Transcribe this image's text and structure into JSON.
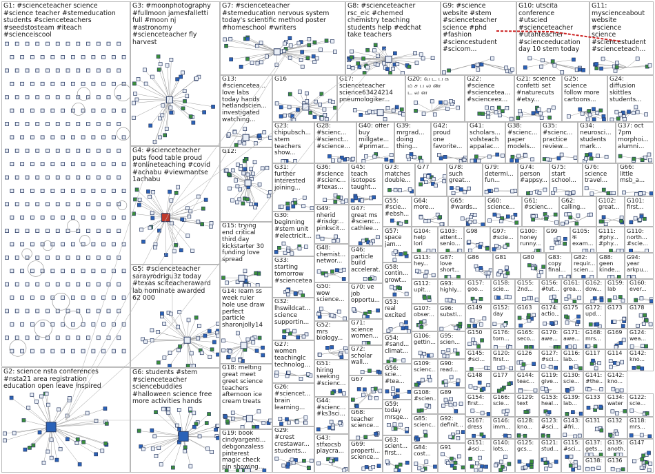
{
  "groups": [
    {
      "id": "G1",
      "text": "G1: #scienceteacher science\n#science teacher #stemeducation\nstudents #scienceteachers\n#seedstosteam #iteach\n#scienceiscool"
    },
    {
      "id": "G2",
      "text": "G2: science nsta conferences\n#nsta21 area registration\neducation open leave inspired"
    },
    {
      "id": "G3",
      "text": "G3: #moonphotography\n#fullmoon jamesfalletti\nfull #moon nj\n#astronomy\n#scienceteacher fly\nharvest"
    },
    {
      "id": "G4",
      "text": "G4: #scienceteacher\nputs food table proud\n#onlineteaching #covid\n#achabu #viewmantse\n1achabu"
    },
    {
      "id": "G5",
      "text": "G5: #scienceteacher\nsarayrodrigu3z today\n#texas sciteacheraward\nlab nominate awarded\n62 000"
    },
    {
      "id": "G6",
      "text": "G6: students #stem\n#scienceteacher\nsciencebuddies\n#halloween science free\nmore activities hands"
    },
    {
      "id": "G7",
      "text": "G7: #scienceteacher\n#stemeducation nervous system\ntoday's scientific method poster\n#homeschool #writers"
    },
    {
      "id": "G8",
      "text": "G8: #scienceteacher\nrsc_eic #chemed\nchemistry teaching\nstudents help #edchat\ntake teachers"
    },
    {
      "id": "G9",
      "text": "G9: #science\nwebsite #stem\n#scienceteacher\nscience #phd\n#fashion\n#sciencestudent\n#scicom..."
    },
    {
      "id": "G10",
      "text": "G10: utscita\nconference\n#utscied\n#scienceteacher\n#utahteacher\n#scienceeducation\nday 10 stem today"
    },
    {
      "id": "G11",
      "text": "G11:\nmyscienceabout\nwebsite\n#science\nscience\n#sciencestudent\n#scienceteach..."
    },
    {
      "id": "G12",
      "text": "G12:"
    },
    {
      "id": "G13",
      "text": "G13:\n#scienceteа...\nlove labs\ntoday hands\nhetlandscien...\ninvestigated\nwatching..."
    },
    {
      "id": "G14",
      "text": "G14: learn ss\nweek ruler\nhole use draw\nperfect\nparticle\nsharonjolly14"
    },
    {
      "id": "G15",
      "text": "G15: trying\nend critical\nthird day\nkickstarter 30\nfunding love\nspread"
    },
    {
      "id": "G16",
      "text": "G16"
    },
    {
      "id": "G17",
      "text": "G17:\nscienceteacher\nscience63424214\npneumologiker..."
    },
    {
      "id": "G18",
      "text": "G18: melting\ngreat meet\ngreet science\nteachers\nafternoon ice\ncream treats"
    },
    {
      "id": "G19",
      "text": "G19: book\ncindyargenti...\ndebgonzaless\npinterest\nmagic check\npin showing..."
    },
    {
      "id": "G20",
      "text": "G20: வ ட ப க\nம ச ப ல ண\nட ல ன"
    },
    {
      "id": "G21",
      "text": "G21: science\nconfetti set\n#naturecuts\n#etsy..."
    },
    {
      "id": "G22",
      "text": "G22:\n#science\n#scienceteа...\n#scienceex..."
    },
    {
      "id": "G23",
      "text": "G23:\nchipubsch...\nstem\nteachers\nshow..."
    },
    {
      "id": "G24",
      "text": "G24:\ndiffusion\nskittles\nstudents..."
    },
    {
      "id": "G25",
      "text": "G25:\nscience\nfollow more\ncartoons..."
    },
    {
      "id": "G26",
      "text": "G26:\n#sciencet...\nbrain\nlearning..."
    },
    {
      "id": "G27",
      "text": "G27:\nwomen\nteachinglc\ntechnolog..."
    },
    {
      "id": "G28",
      "text": "G28:\n#scienc...\n#scienct...\n#science..."
    },
    {
      "id": "G29",
      "text": "G29:\n#crest\ncrestawar...\nstudents..."
    },
    {
      "id": "G30",
      "text": "G30:\nbeginning\n#stem unit\n#electricit..."
    },
    {
      "id": "G31",
      "text": "G31:\nfurther\ninterested\njoining..."
    },
    {
      "id": "G32",
      "text": "G32:\nlhswildcat...\nscience\nsupportin..."
    },
    {
      "id": "G33",
      "text": "G33:\nstarting\ntomorrow\n#scienceteа..."
    },
    {
      "id": "G34",
      "text": "G34:\nneurosci...\nstudents\nmark..."
    },
    {
      "id": "G35",
      "text": "G35:\n#scienc...\npractice\nreview..."
    },
    {
      "id": "G36",
      "text": "G36:\n#science\n#scienc...\n#texas..."
    },
    {
      "id": "G37",
      "text": "G37: oct\n7pm\nmorphoi...\nalumni..."
    },
    {
      "id": "G38",
      "text": "G38:\n#scienc...\npaper\nmodels..."
    },
    {
      "id": "G39",
      "text": "G39:\nmrgrad...\ndoing\nthing..."
    },
    {
      "id": "G40",
      "text": "G40: offer\nbuy\nmillgate...\n#primar..."
    },
    {
      "id": "G41",
      "text": "G41:\nscholars...\nvolsteach\nappalac..."
    },
    {
      "id": "G42",
      "text": "G42:\nproud\none\nfavorite..."
    },
    {
      "id": "G43",
      "text": "G43:\nstfxocsb\nplaycra..."
    },
    {
      "id": "G44",
      "text": "G44:\n#scienc...\n#ks3sci..."
    },
    {
      "id": "G45",
      "text": "G45:\nteach\nisotopes\ntaught..."
    },
    {
      "id": "G46",
      "text": "G46:\nparticle\nbuild\naccelerat..."
    },
    {
      "id": "G47",
      "text": "G47:\ngreat ms\n#scienc...\ncathlee..."
    },
    {
      "id": "G48",
      "text": "G48:\nchemist...\nnetwor..."
    },
    {
      "id": "G49",
      "text": "G49:\nnherid\n#risdgr...\npinkscit..."
    },
    {
      "id": "G50",
      "text": "G50:\nwow\nscience..."
    },
    {
      "id": "G51",
      "text": "G51:\nhiring\nseeking\n#scienc..."
    },
    {
      "id": "G52",
      "text": "G52:\nmrs\nbiology..."
    },
    {
      "id": "G53",
      "text": "G53:\nreal\nexcited"
    },
    {
      "id": "G54",
      "text": "G54:\n#sand...\nclimat..."
    },
    {
      "id": "G55",
      "text": "G55:\n#scie...\n#ebsh..."
    },
    {
      "id": "G56",
      "text": "G56:\nscie...\n#tea..."
    },
    {
      "id": "G57",
      "text": "G57:\nspace\njam..."
    },
    {
      "id": "G58",
      "text": "G58:\ncontin...\ngrowt..."
    },
    {
      "id": "G59",
      "text": "G59:\ntoday\nmrsge..."
    },
    {
      "id": "G60",
      "text": "G60:\nscience..."
    },
    {
      "id": "G61",
      "text": "G61:\n#scienc..."
    },
    {
      "id": "G62",
      "text": "G62:\ncalling..."
    },
    {
      "id": "G63",
      "text": "G63:\nscient...\nfirst..."
    },
    {
      "id": "G64",
      "text": "G64:\nmore..."
    },
    {
      "id": "G65",
      "text": "G65:\n#wards..."
    },
    {
      "id": "G66",
      "text": "G66:\nlittle\nmsb_a..."
    },
    {
      "id": "G67",
      "text": "G67"
    },
    {
      "id": "G68",
      "text": "G68:\nteacher\nscience..."
    },
    {
      "id": "G69",
      "text": "G69:\nproperti...\nscience..."
    },
    {
      "id": "G70",
      "text": "G70: ve\njob\nopportu..."
    },
    {
      "id": "G71",
      "text": "G71:\nscience\nwomen..."
    },
    {
      "id": "G72",
      "text": "G72:\nscholar\nwall..."
    },
    {
      "id": "G73",
      "text": "G73:\nmatches\ndouble..."
    },
    {
      "id": "G74",
      "text": "G74:\nperson\n#appsy..."
    },
    {
      "id": "G75",
      "text": "G75:\nstart\nschool..."
    },
    {
      "id": "G76",
      "text": "G76:\nscience\ntravel..."
    },
    {
      "id": "G77",
      "text": "G77"
    },
    {
      "id": "G78",
      "text": "G78:\nsuch\ngreat..."
    },
    {
      "id": "G79",
      "text": "G79:\ndetermi...\nfun..."
    },
    {
      "id": "G80",
      "text": "G80"
    },
    {
      "id": "G81",
      "text": "G81"
    },
    {
      "id": "G82",
      "text": "G82:\nrequir...\nscien..."
    },
    {
      "id": "G83",
      "text": "G83:\ncopy\nfinal..."
    },
    {
      "id": "G84",
      "text": "G84:\ncost..."
    },
    {
      "id": "G85",
      "text": "G85:\nscienc..."
    },
    {
      "id": "G86",
      "text": "G86"
    },
    {
      "id": "G87",
      "text": "G87:\nlove\nshort..."
    },
    {
      "id": "G88",
      "text": "G88:\ngeen\nkinde..."
    },
    {
      "id": "G89",
      "text": "G89"
    },
    {
      "id": "G90",
      "text": "G90:\nread..."
    },
    {
      "id": "G91",
      "text": "G91"
    },
    {
      "id": "G92",
      "text": "G92:\ndefinit..."
    },
    {
      "id": "G93",
      "text": "G93:\nhighly..."
    },
    {
      "id": "G94",
      "text": "G94:\nyear\narkpu..."
    },
    {
      "id": "G95",
      "text": "G95:\nscien..."
    },
    {
      "id": "G96",
      "text": "G96:\nsubsti..."
    },
    {
      "id": "G97",
      "text": "G97:\n#scie..."
    },
    {
      "id": "G98",
      "text": "G98"
    },
    {
      "id": "G99",
      "text": "G99"
    },
    {
      "id": "G100",
      "text": "G100:\nhoney\nrunny..."
    },
    {
      "id": "G101",
      "text": "G101:\nfirst..."
    },
    {
      "id": "G102",
      "text": "G102:\ngreat..."
    },
    {
      "id": "G103",
      "text": "G103:\nattent...\nsenio..."
    },
    {
      "id": "G104",
      "text": "G104:\nhelp\nlori"
    },
    {
      "id": "G105",
      "text": "G105:\nक\nexam..."
    },
    {
      "id": "G106",
      "text": "G106:\ngettin..."
    },
    {
      "id": "G107",
      "text": "G107:\nobser..."
    },
    {
      "id": "G108",
      "text": "G108:\n#scien..."
    },
    {
      "id": "G109",
      "text": "G109:\nscienc..."
    },
    {
      "id": "G110",
      "text": "G110:\nnorth...\n#scie..."
    },
    {
      "id": "G111",
      "text": "G111:\n#phy...\n#phy..."
    },
    {
      "id": "G112",
      "text": "G112:\nupit..."
    },
    {
      "id": "G113",
      "text": "G113:\nhey..."
    },
    {
      "id": "G114",
      "text": "G114"
    },
    {
      "id": "G115",
      "text": "G115:\n#sci..."
    },
    {
      "id": "G116",
      "text": "G116:\nlab..."
    },
    {
      "id": "G117",
      "text": "G117"
    },
    {
      "id": "G118",
      "text": "G118:\nmrs..."
    },
    {
      "id": "G119",
      "text": "G119:\ngive..."
    },
    {
      "id": "G120",
      "text": "G120:\nfirst..."
    },
    {
      "id": "G121",
      "text": "G121:\nstud..."
    },
    {
      "id": "G122",
      "text": "G122:\nscie..."
    },
    {
      "id": "G123",
      "text": "G123:\n#sci..."
    },
    {
      "id": "G124",
      "text": "G124:\nwea..."
    },
    {
      "id": "G125",
      "text": "G125:\ngcs..."
    },
    {
      "id": "G126",
      "text": "G126"
    },
    {
      "id": "G127",
      "text": "G127:\n#sci..."
    },
    {
      "id": "G128",
      "text": "G128:\nkno..."
    },
    {
      "id": "G129",
      "text": "G129:\ntext"
    },
    {
      "id": "G130",
      "text": "G130:\nscie..."
    },
    {
      "id": "G131",
      "text": "G131"
    },
    {
      "id": "G132",
      "text": "G132"
    },
    {
      "id": "G133",
      "text": "G133"
    },
    {
      "id": "G134",
      "text": "G134:\nwater"
    },
    {
      "id": "G135",
      "text": "G135:\nanoth..."
    },
    {
      "id": "G136",
      "text": "G136"
    },
    {
      "id": "G137",
      "text": "G137:\ngets..."
    },
    {
      "id": "G138",
      "text": "G138:"
    },
    {
      "id": "G139",
      "text": "G139:\nlab..."
    },
    {
      "id": "G140",
      "text": "G140:\nlots..."
    },
    {
      "id": "G141",
      "text": "G141:\n#the..."
    },
    {
      "id": "G142",
      "text": "G142:\nkno..."
    },
    {
      "id": "G143",
      "text": "G143:\n#fri..."
    },
    {
      "id": "G144",
      "text": "G144:\nteac..."
    },
    {
      "id": "G145",
      "text": "G145:\n#sci..."
    },
    {
      "id": "G146",
      "text": "G146:\nimm..."
    },
    {
      "id": "G147",
      "text": "G147"
    },
    {
      "id": "G148",
      "text": "G148"
    },
    {
      "id": "G149",
      "text": "G149"
    },
    {
      "id": "G150",
      "text": "G150"
    },
    {
      "id": "G151",
      "text": "G151:\n#sci..."
    },
    {
      "id": "G152",
      "text": "G152:\nday"
    },
    {
      "id": "G153",
      "text": "G153:\nheal..."
    },
    {
      "id": "G154",
      "text": "G154:\nfirst..."
    },
    {
      "id": "G155",
      "text": "G155:\n2nd..."
    },
    {
      "id": "G156",
      "text": "G156:\n#tut..."
    },
    {
      "id": "G157",
      "text": "G157:\ngoo..."
    },
    {
      "id": "G158",
      "text": "G158:\nscie..."
    },
    {
      "id": "G159",
      "text": "G159:\nlab"
    },
    {
      "id": "G160",
      "text": "G160:\never..."
    },
    {
      "id": "G161",
      "text": "G161:\ngrea..."
    },
    {
      "id": "G162",
      "text": "G162:\ndow..."
    },
    {
      "id": "G163",
      "text": "G163"
    },
    {
      "id": "G164",
      "text": "G164:\nscie..."
    },
    {
      "id": "G165",
      "text": "G165:\nseco..."
    },
    {
      "id": "G166",
      "text": "G166:\nscie..."
    },
    {
      "id": "G167",
      "text": "G167:\ndress"
    },
    {
      "id": "G168",
      "text": "G168:\nmrs..."
    },
    {
      "id": "G169",
      "text": "G169"
    },
    {
      "id": "G170",
      "text": "G170:\nawe..."
    },
    {
      "id": "G171",
      "text": "G171:\nawe..."
    },
    {
      "id": "G172",
      "text": "G172:\nupd..."
    },
    {
      "id": "G173",
      "text": "G173"
    },
    {
      "id": "G174",
      "text": "G174:\nactio..."
    },
    {
      "id": "G175",
      "text": "G175"
    },
    {
      "id": "G176",
      "text": "G176:\ntorn..."
    },
    {
      "id": "G177",
      "text": "G177"
    },
    {
      "id": "G178",
      "text": "G178"
    }
  ],
  "colors": {
    "edge": "#9a9a9a",
    "node_fill": "#e9eef6",
    "node_stroke": "#2a3b63",
    "panel_border": "#b8b8b8",
    "red_edge": "#cc2222",
    "accent_blue": "#2a62b8",
    "accent_green": "#3b8f3b",
    "accent_red": "#c0392b",
    "accent_orange": "#e67e22",
    "accent_yellow": "#f1c40f"
  }
}
